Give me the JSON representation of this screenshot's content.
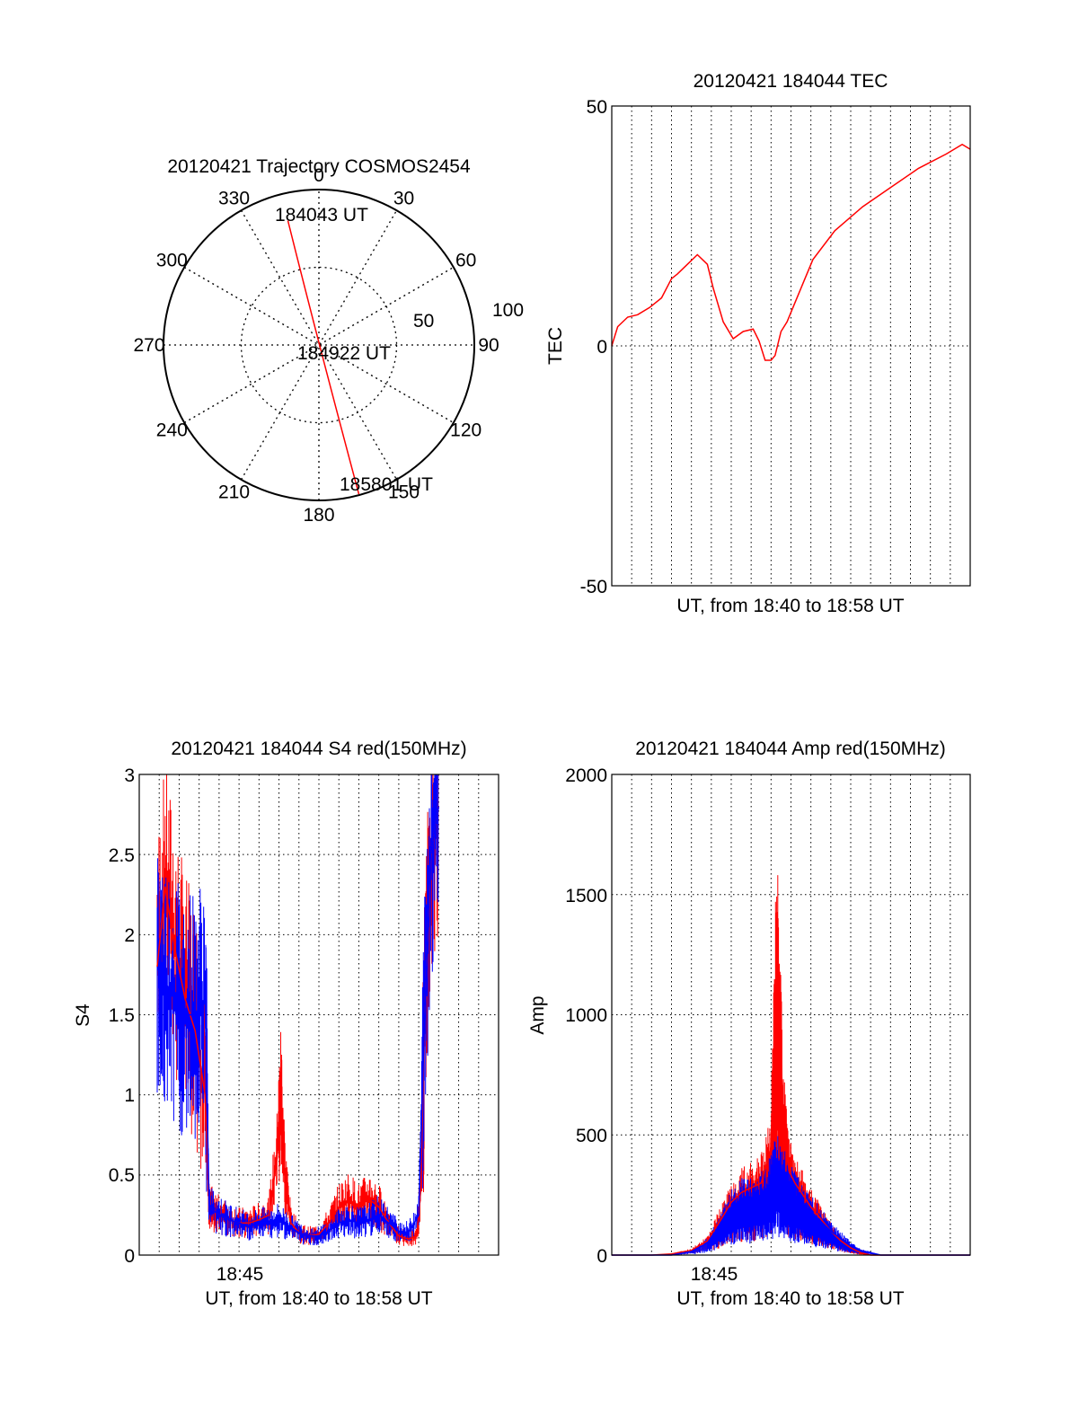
{
  "colors": {
    "red": "#ff0000",
    "blue": "#0000ff",
    "axis": "#000000"
  },
  "chart_data": [
    {
      "id": "polar",
      "type": "scatter",
      "title": "20120421 Trajectory COSMOS2454",
      "angle_labels": [
        "0",
        "30",
        "60",
        "90",
        "120",
        "150",
        "180",
        "210",
        "240",
        "270",
        "300",
        "330"
      ],
      "radius_labels": [
        "50",
        "100"
      ],
      "time_labels": [
        "184043 UT",
        "184922 UT",
        "185801 UT"
      ],
      "trajectory": {
        "azimuth_deg": [
          346,
          180,
          165
        ],
        "zenith_deg": [
          90,
          0,
          104
        ],
        "times": [
          "184043 UT",
          "184922 UT",
          "185801 UT"
        ]
      },
      "grid": true
    },
    {
      "id": "tec",
      "type": "line",
      "title": "20120421 184044 TEC",
      "xlabel": "UT, from 18:40 to 18:58 UT",
      "ylabel": "TEC",
      "ylim": [
        -50,
        50
      ],
      "yticks": [
        "50",
        "0",
        "-50"
      ],
      "xlim": [
        0,
        18
      ],
      "grid": true,
      "series": [
        {
          "color": "red",
          "x": [
            0,
            0.3,
            0.8,
            1.3,
            1.9,
            2.5,
            3.0,
            3.3,
            3.8,
            4.3,
            4.8,
            5.1,
            5.6,
            6.1,
            6.6,
            7.1,
            7.4,
            7.7,
            8.0,
            8.2,
            8.5,
            8.8,
            9.1,
            9.6,
            10.1,
            11.2,
            12.6,
            14.0,
            15.4,
            16.8,
            17.6,
            18.0
          ],
          "y": [
            0,
            4,
            6,
            6.5,
            8,
            10,
            14,
            15,
            17,
            19,
            17,
            12,
            5,
            1.5,
            3,
            3.5,
            1,
            -3,
            -3,
            -2,
            3,
            5,
            8,
            13,
            18,
            24,
            29,
            33,
            37,
            40,
            42,
            41
          ]
        }
      ]
    },
    {
      "id": "s4",
      "type": "line",
      "title": "20120421 184044 S4 red(150MHz)",
      "xlabel": "UT, from 18:40 to 18:58 UT",
      "ylabel": "S4",
      "ylim": [
        0,
        3
      ],
      "yticks": [
        "3",
        "2.5",
        "2",
        "1.5",
        "1",
        "0.5",
        "0"
      ],
      "xtick_label": "18:45",
      "xlim": [
        0,
        18
      ],
      "grid": true,
      "series": [
        {
          "color": "red",
          "x": [
            0.9,
            1.3,
            1.8,
            2.3,
            2.8,
            3.3,
            3.5,
            4.0,
            4.5,
            5.0,
            5.5,
            6.0,
            6.5,
            6.9,
            7.1,
            7.3,
            7.6,
            8.0,
            8.5,
            9.0,
            9.5,
            10.0,
            10.5,
            11.0,
            11.5,
            12.0,
            12.5,
            13.0,
            13.5,
            13.9,
            14.1,
            14.3,
            14.6,
            15.0
          ],
          "y": [
            1.8,
            2.3,
            1.9,
            1.6,
            1.4,
            1.0,
            0.3,
            0.25,
            0.22,
            0.2,
            0.2,
            0.22,
            0.25,
            0.6,
            1.0,
            0.5,
            0.2,
            0.14,
            0.12,
            0.13,
            0.2,
            0.3,
            0.35,
            0.3,
            0.35,
            0.3,
            0.2,
            0.12,
            0.1,
            0.12,
            0.4,
            1.5,
            2.5,
            2.8
          ]
        },
        {
          "color": "blue",
          "x": [
            0.9,
            1.3,
            1.8,
            2.3,
            2.8,
            3.3,
            3.5,
            4.0,
            4.5,
            5.0,
            5.5,
            6.0,
            6.5,
            7.0,
            7.5,
            8.0,
            8.5,
            9.0,
            9.5,
            10.0,
            10.5,
            11.0,
            11.5,
            12.0,
            12.5,
            13.0,
            13.5,
            14.0,
            14.3,
            14.6,
            15.0
          ],
          "y": [
            1.8,
            1.7,
            1.6,
            1.5,
            1.5,
            1.6,
            0.3,
            0.25,
            0.22,
            0.2,
            0.18,
            0.2,
            0.2,
            0.22,
            0.18,
            0.14,
            0.12,
            0.12,
            0.15,
            0.2,
            0.22,
            0.2,
            0.22,
            0.25,
            0.2,
            0.15,
            0.14,
            0.25,
            1.5,
            2.5,
            2.8
          ]
        }
      ]
    },
    {
      "id": "amp",
      "type": "line",
      "title": "20120421 184044 Amp red(150MHz)",
      "xlabel": "UT, from 18:40 to 18:58 UT",
      "ylabel": "Amp",
      "ylim": [
        0,
        2000
      ],
      "yticks": [
        "2000",
        "1500",
        "1000",
        "500",
        "0"
      ],
      "xtick_label": "18:45",
      "xlim": [
        0,
        18
      ],
      "grid": true,
      "series": [
        {
          "color": "red",
          "x": [
            0,
            2.0,
            3.0,
            4.0,
            4.8,
            5.5,
            6.0,
            6.5,
            7.0,
            7.5,
            8.0,
            8.3,
            8.6,
            8.9,
            9.2,
            9.6,
            10.0,
            10.5,
            11.0,
            11.5,
            12.0,
            12.5,
            13.0,
            18.0
          ],
          "y": [
            0,
            0,
            5,
            20,
            60,
            150,
            220,
            260,
            280,
            300,
            450,
            1300,
            600,
            350,
            300,
            250,
            200,
            150,
            100,
            60,
            30,
            10,
            0,
            0
          ]
        },
        {
          "color": "blue",
          "x": [
            0,
            3.0,
            4.0,
            4.8,
            5.5,
            6.0,
            6.5,
            7.0,
            7.5,
            8.0,
            8.3,
            8.6,
            8.9,
            9.2,
            9.6,
            10.0,
            10.5,
            11.0,
            11.5,
            12.0,
            12.5,
            13.0,
            13.5,
            18.0
          ],
          "y": [
            0,
            0,
            15,
            50,
            130,
            200,
            230,
            240,
            250,
            300,
            380,
            330,
            280,
            250,
            210,
            180,
            140,
            100,
            70,
            40,
            20,
            10,
            0,
            0
          ]
        }
      ]
    }
  ]
}
